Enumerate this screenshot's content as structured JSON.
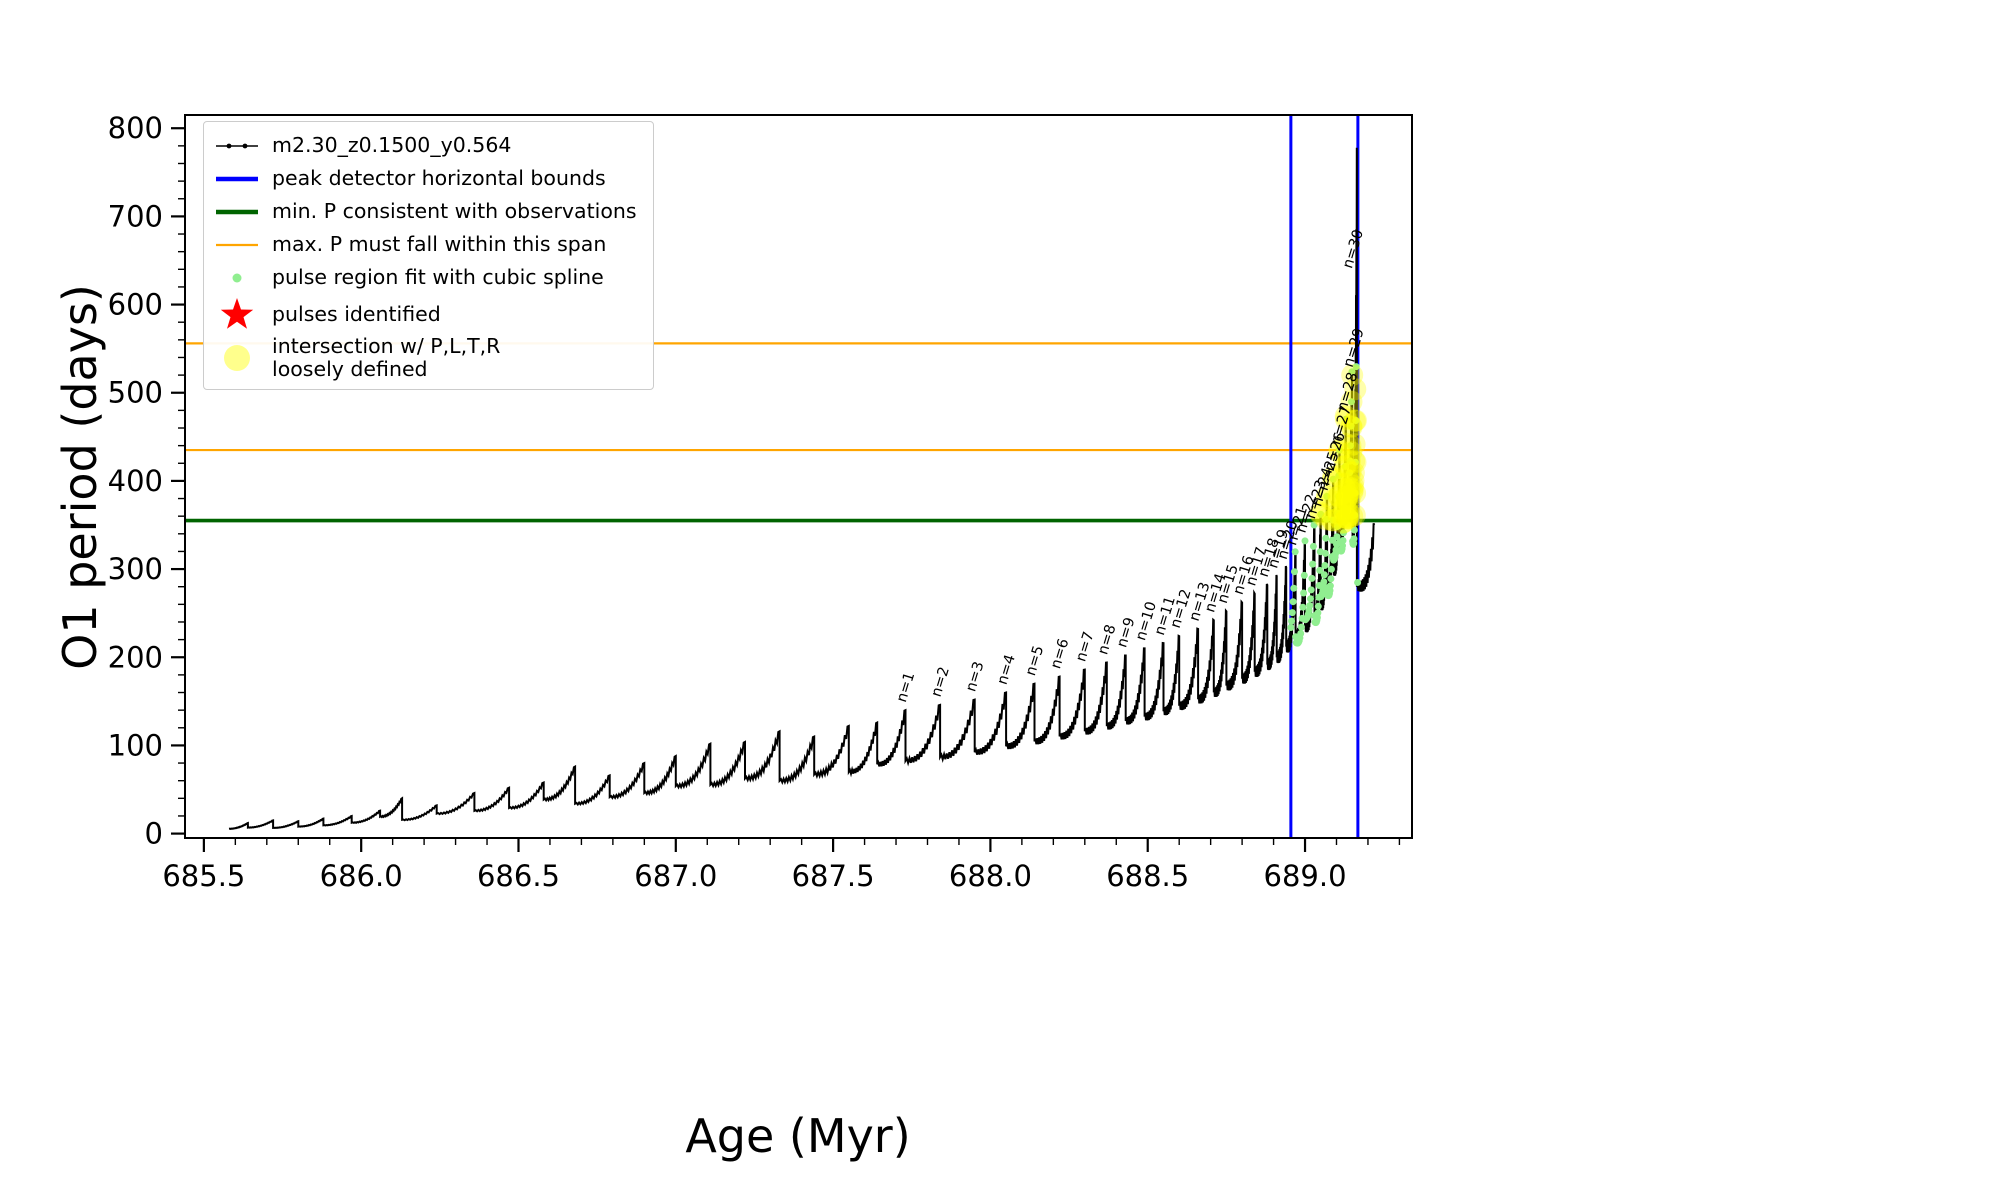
{
  "chart_data": {
    "type": "line",
    "series_name": "m2.30_z0.1500_y0.564",
    "xlabel": "Age (Myr)",
    "ylabel": "O1 period (days)",
    "xlim": [
      685.44,
      689.34
    ],
    "ylim": [
      -5,
      815
    ],
    "xticks": [
      685.5,
      686.0,
      686.5,
      687.0,
      687.5,
      688.0,
      688.5,
      689.0
    ],
    "yticks": [
      0,
      100,
      200,
      300,
      400,
      500,
      600,
      700,
      800
    ],
    "x_minor_step": 0.1,
    "y_minor_step": 20,
    "grid": false,
    "legend_position": "upper left",
    "colors": {
      "curve": "#000000",
      "peak_bounds": "#0000FF",
      "min_p": "#006400",
      "max_p_span": "#FFA500",
      "spline_fit": "#90EE90",
      "pulses": "#FF0000",
      "intersection": "#FFFF00"
    },
    "peak_bounds": {
      "values": [
        688.955,
        689.168
      ]
    },
    "min_p": {
      "value": 355
    },
    "max_p_span": {
      "values": [
        435,
        556
      ]
    },
    "spline_fit": {
      "x_range": [
        688.955,
        689.168
      ],
      "y_range": [
        200,
        545
      ]
    },
    "intersection": {
      "x_range": [
        689.04,
        689.185
      ],
      "y_range": [
        352,
        522
      ]
    },
    "pulse_start_age": 685.58,
    "pulses": [
      [
        685.64,
        12
      ],
      [
        685.72,
        15
      ],
      [
        685.8,
        14
      ],
      [
        685.88,
        17
      ],
      [
        685.97,
        20
      ],
      [
        686.06,
        26
      ],
      [
        686.13,
        40
      ],
      [
        686.24,
        32
      ],
      [
        686.36,
        46
      ],
      [
        686.47,
        52
      ],
      [
        686.58,
        58
      ],
      [
        686.68,
        76
      ],
      [
        686.79,
        66
      ],
      [
        686.9,
        80
      ],
      [
        687.0,
        88
      ],
      [
        687.11,
        102
      ],
      [
        687.22,
        104
      ],
      [
        687.33,
        116
      ],
      [
        687.44,
        110
      ],
      [
        687.55,
        122
      ],
      [
        687.64,
        126
      ],
      [
        687.73,
        140
      ],
      [
        687.84,
        146
      ],
      [
        687.95,
        152
      ],
      [
        688.05,
        160
      ],
      [
        688.14,
        170
      ],
      [
        688.22,
        178
      ],
      [
        688.3,
        186
      ],
      [
        688.37,
        194
      ],
      [
        688.43,
        202
      ],
      [
        688.49,
        210
      ],
      [
        688.55,
        216
      ],
      [
        688.6,
        224
      ],
      [
        688.66,
        232
      ],
      [
        688.71,
        242
      ],
      [
        688.75,
        252
      ],
      [
        688.8,
        262
      ],
      [
        688.84,
        272
      ],
      [
        688.88,
        282
      ],
      [
        688.91,
        292
      ],
      [
        688.94,
        302
      ],
      [
        688.97,
        318
      ],
      [
        689.0,
        332
      ],
      [
        689.03,
        348
      ],
      [
        689.05,
        362
      ],
      [
        689.07,
        380
      ],
      [
        689.09,
        402
      ],
      [
        689.11,
        432
      ],
      [
        689.13,
        470
      ],
      [
        689.15,
        520
      ],
      [
        689.165,
        767,
        360
      ],
      [
        689.22,
        350,
        280
      ]
    ],
    "annotations": [
      [
        "n=1",
        687.73,
        148
      ],
      [
        "n=2",
        687.84,
        154
      ],
      [
        "n=3",
        687.95,
        160
      ],
      [
        "n=4",
        688.05,
        168
      ],
      [
        "n=5",
        688.14,
        178
      ],
      [
        "n=6",
        688.22,
        186
      ],
      [
        "n=7",
        688.3,
        194
      ],
      [
        "n=8",
        688.37,
        202
      ],
      [
        "n=9",
        688.43,
        210
      ],
      [
        "n=10",
        688.49,
        218
      ],
      [
        "n=11",
        688.55,
        224
      ],
      [
        "n=12",
        688.6,
        232
      ],
      [
        "n=13",
        688.66,
        240
      ],
      [
        "n=14",
        688.71,
        250
      ],
      [
        "n=15",
        688.75,
        260
      ],
      [
        "n=16",
        688.8,
        270
      ],
      [
        "n=17",
        688.84,
        280
      ],
      [
        "n=18",
        688.88,
        290
      ],
      [
        "n=19",
        688.91,
        300
      ],
      [
        "n=20",
        688.94,
        310
      ],
      [
        "n=21",
        688.97,
        326
      ],
      [
        "n=22",
        689.0,
        340
      ],
      [
        "n=23",
        689.03,
        356
      ],
      [
        "n=24",
        689.05,
        370
      ],
      [
        "n=25",
        689.07,
        388
      ],
      [
        "n=26",
        689.09,
        410
      ],
      [
        "n=27",
        689.11,
        440
      ],
      [
        "n=28",
        689.13,
        478
      ],
      [
        "n=29",
        689.15,
        528
      ],
      [
        "n=30",
        689.148,
        640
      ]
    ],
    "legend": [
      {
        "marker": "line-dots",
        "color_key": "curve",
        "icon": "series-line-icon",
        "label": "m2.30_z0.1500_y0.564"
      },
      {
        "marker": "thick-line",
        "color_key": "peak_bounds",
        "icon": "bounds-line-icon",
        "label": "peak detector horizontal bounds"
      },
      {
        "marker": "thick-line",
        "color_key": "min_p",
        "icon": "min-p-line-icon",
        "label": "min. P consistent with observations"
      },
      {
        "marker": "line",
        "color_key": "max_p_span",
        "icon": "max-p-line-icon",
        "label": "max. P must fall within this span"
      },
      {
        "marker": "dot-small",
        "color_key": "spline_fit",
        "icon": "spline-dot-icon",
        "label": "pulse region fit with cubic spline"
      },
      {
        "marker": "star",
        "color_key": "pulses",
        "icon": "pulse-star-icon",
        "label": "pulses identified"
      },
      {
        "marker": "dot-large",
        "color_key": "intersection",
        "icon": "intersection-dot-icon",
        "label": "intersection w/ P,L,T,R\nloosely defined"
      }
    ]
  }
}
